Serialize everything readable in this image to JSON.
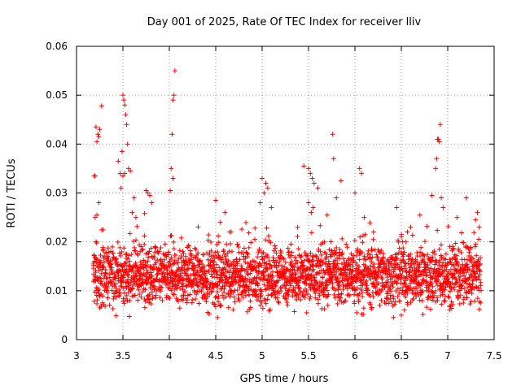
{
  "chart_data": {
    "type": "scatter",
    "title": "Day 001 of 2025, Rate Of TEC Index for receiver lliv",
    "xlabel": "GPS time / hours",
    "ylabel": "ROTI / TECUs",
    "xlim": [
      3,
      7.5
    ],
    "ylim": [
      0,
      0.06
    ],
    "xticks": [
      "3",
      "3.5",
      "4",
      "4.5",
      "5",
      "5.5",
      "6",
      "6.5",
      "7",
      "7.5"
    ],
    "yticks": [
      "0",
      "0.01",
      "0.02",
      "0.03",
      "0.04",
      "0.05",
      "0.06"
    ],
    "grid": true,
    "marker": "plus",
    "color": "#ff0000",
    "series": [
      {
        "name": "ROTI",
        "x_range": [
          3.18,
          7.36
        ],
        "baseline_description_values": {
          "typical_min": 0.006,
          "typical_max": 0.02
        },
        "points": [
          [
            3.2,
            0.0335
          ],
          [
            3.21,
            0.0435
          ],
          [
            3.22,
            0.0405
          ],
          [
            3.23,
            0.042
          ],
          [
            3.24,
            0.0415
          ],
          [
            3.25,
            0.043
          ],
          [
            3.27,
            0.0478
          ],
          [
            3.2,
            0.025
          ],
          [
            3.22,
            0.0255
          ],
          [
            3.24,
            0.028
          ],
          [
            3.21,
            0.02
          ],
          [
            3.19,
            0.0335
          ],
          [
            3.45,
            0.0365
          ],
          [
            3.47,
            0.034
          ],
          [
            3.49,
            0.0385
          ],
          [
            3.5,
            0.05
          ],
          [
            3.51,
            0.049
          ],
          [
            3.52,
            0.048
          ],
          [
            3.53,
            0.046
          ],
          [
            3.54,
            0.044
          ],
          [
            3.55,
            0.04
          ],
          [
            3.48,
            0.031
          ],
          [
            3.5,
            0.0335
          ],
          [
            3.52,
            0.034
          ],
          [
            3.56,
            0.035
          ],
          [
            3.58,
            0.0345
          ],
          [
            3.6,
            0.026
          ],
          [
            3.62,
            0.029
          ],
          [
            3.64,
            0.025
          ],
          [
            3.75,
            0.0305
          ],
          [
            3.77,
            0.03
          ],
          [
            3.79,
            0.0295
          ],
          [
            3.81,
            0.028
          ],
          [
            4.01,
            0.0305
          ],
          [
            4.02,
            0.035
          ],
          [
            4.03,
            0.042
          ],
          [
            4.04,
            0.049
          ],
          [
            4.05,
            0.05
          ],
          [
            4.06,
            0.055
          ],
          [
            4.04,
            0.033
          ],
          [
            4.5,
            0.0285
          ],
          [
            4.55,
            0.024
          ],
          [
            4.6,
            0.026
          ],
          [
            4.65,
            0.022
          ],
          [
            5.0,
            0.033
          ],
          [
            5.02,
            0.03
          ],
          [
            5.04,
            0.032
          ],
          [
            5.06,
            0.031
          ],
          [
            4.98,
            0.028
          ],
          [
            5.1,
            0.027
          ],
          [
            5.45,
            0.0355
          ],
          [
            5.5,
            0.035
          ],
          [
            5.52,
            0.034
          ],
          [
            5.54,
            0.033
          ],
          [
            5.56,
            0.032
          ],
          [
            5.5,
            0.028
          ],
          [
            5.53,
            0.026
          ],
          [
            5.55,
            0.027
          ],
          [
            5.6,
            0.031
          ],
          [
            5.7,
            0.0255
          ],
          [
            5.76,
            0.042
          ],
          [
            5.77,
            0.037
          ],
          [
            5.8,
            0.029
          ],
          [
            5.85,
            0.0325
          ],
          [
            6.05,
            0.035
          ],
          [
            6.07,
            0.034
          ],
          [
            6.0,
            0.03
          ],
          [
            6.1,
            0.025
          ],
          [
            6.2,
            0.022
          ],
          [
            6.45,
            0.027
          ],
          [
            6.5,
            0.021
          ],
          [
            6.6,
            0.023
          ],
          [
            6.7,
            0.0255
          ],
          [
            6.83,
            0.0295
          ],
          [
            6.87,
            0.035
          ],
          [
            6.88,
            0.037
          ],
          [
            6.89,
            0.041
          ],
          [
            6.9,
            0.041
          ],
          [
            6.91,
            0.0405
          ],
          [
            6.92,
            0.044
          ],
          [
            6.93,
            0.029
          ],
          [
            6.95,
            0.027
          ],
          [
            7.1,
            0.025
          ],
          [
            7.2,
            0.029
          ],
          [
            7.3,
            0.0245
          ],
          [
            7.32,
            0.026
          ],
          [
            7.34,
            0.023
          ],
          [
            4.52,
            0.0045
          ],
          [
            5.48,
            0.0055
          ],
          [
            6.5,
            0.005
          ],
          [
            6.02,
            0.0055
          ],
          [
            3.25,
            0.0065
          ]
        ]
      }
    ]
  }
}
